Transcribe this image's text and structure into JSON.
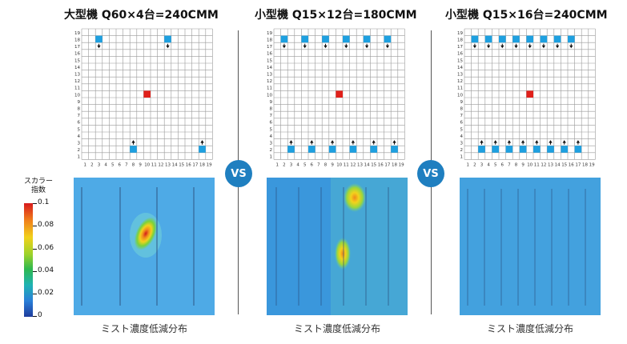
{
  "panels": [
    {
      "title": "大型機 Q60×4台=240CMM",
      "caption": "ミスト濃度低減分布",
      "top_units": [
        3,
        13
      ],
      "bottom_units": [
        8,
        18
      ]
    },
    {
      "title": "小型機 Q15×12台=180CMM",
      "caption": "ミスト濃度低減分布",
      "top_units": [
        2,
        5,
        8,
        11,
        14,
        17
      ],
      "bottom_units": [
        3,
        6,
        9,
        12,
        15,
        18
      ]
    },
    {
      "title": "小型機 Q15×16台=240CMM",
      "caption": "ミスト濃度低減分布",
      "top_units": [
        2,
        4,
        6,
        8,
        10,
        12,
        14,
        16
      ],
      "bottom_units": [
        3,
        5,
        7,
        9,
        11,
        13,
        15,
        17
      ]
    }
  ],
  "grid": {
    "columns": 19,
    "rows": 19,
    "center_col": 10,
    "center_row": 10
  },
  "vs_label": "VS",
  "legend": {
    "title_line1": "スカラー",
    "title_line2": "指数",
    "ticks": [
      "0.1",
      "0.08",
      "0.06",
      "0.04",
      "0.02",
      "0"
    ]
  },
  "colors": {
    "unit": "#1ea0e0",
    "center": "#e0201a",
    "vs_bg": "#1f7fc0",
    "heat_base": "#45a3e4"
  }
}
